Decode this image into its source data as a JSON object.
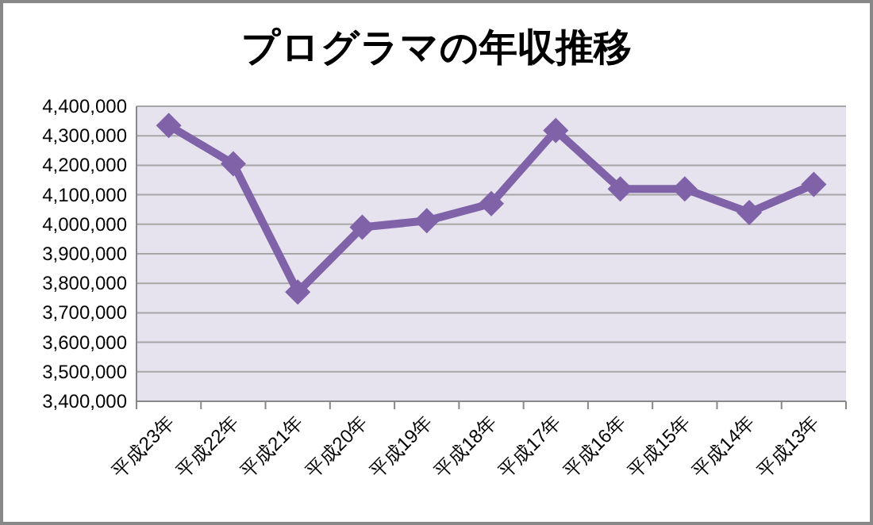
{
  "chart_data": {
    "type": "line",
    "title": "プログラマの年収推移",
    "categories": [
      "平成23年",
      "平成22年",
      "平成21年",
      "平成20年",
      "平成19年",
      "平成18年",
      "平成17年",
      "平成16年",
      "平成15年",
      "平成14年",
      "平成13年"
    ],
    "series": [
      {
        "color": "#7f62a8",
        "values": [
          4335000,
          4205000,
          3770000,
          3990000,
          4012000,
          4070000,
          4318000,
          4120000,
          4120000,
          4040000,
          4135000
        ]
      }
    ],
    "ylim": [
      3400000,
      4400000
    ],
    "yticks": [
      {
        "value": 3400000,
        "label": "3,400,000"
      },
      {
        "value": 3500000,
        "label": "3,500,000"
      },
      {
        "value": 3600000,
        "label": "3,600,000"
      },
      {
        "value": 3700000,
        "label": "3,700,000"
      },
      {
        "value": 3800000,
        "label": "3,800,000"
      },
      {
        "value": 3900000,
        "label": "3,900,000"
      },
      {
        "value": 4000000,
        "label": "4,000,000"
      },
      {
        "value": 4100000,
        "label": "4,100,000"
      },
      {
        "value": 4200000,
        "label": "4,200,000"
      },
      {
        "value": 4300000,
        "label": "4,300,000"
      },
      {
        "value": 4400000,
        "label": "4,400,000"
      }
    ],
    "grid": "y",
    "marker": "diamond",
    "line_style": "solid"
  }
}
